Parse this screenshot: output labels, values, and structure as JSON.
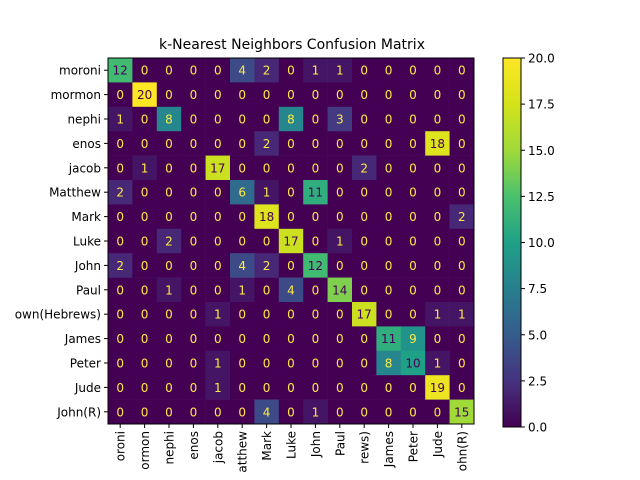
{
  "chart_data": {
    "type": "heatmap",
    "title": "k-Nearest Neighbors Confusion Matrix",
    "row_labels": [
      "moroni",
      "mormon",
      "nephi",
      "enos",
      "jacob",
      "Matthew",
      "Mark",
      "Luke",
      "John",
      "Paul",
      "Unknown(Hebrews)",
      "James",
      "Peter",
      "Jude",
      "John(R)"
    ],
    "col_labels": [
      "moroni",
      "mormon",
      "nephi",
      "enos",
      "jacob",
      "Matthew",
      "Mark",
      "Luke",
      "John",
      "Paul",
      "Unknown(Hebrews)",
      "James",
      "Peter",
      "Jude",
      "John(R)"
    ],
    "row_tick_labels": [
      "moroni",
      "mormon",
      "nephi",
      "enos",
      "jacob",
      "Matthew",
      "Mark",
      "Luke",
      "John",
      "Paul",
      "own(Hebrews)",
      "James",
      "Peter",
      "Jude",
      "John(R)"
    ],
    "col_tick_labels": [
      "oroni",
      "ormon",
      "nephi",
      "enos",
      "jacob",
      "atthew",
      "Mark",
      "Luke",
      "John",
      "Paul",
      "rews)",
      "James",
      "Peter",
      "Jude",
      "ohn(R)"
    ],
    "matrix": [
      [
        12,
        0,
        0,
        0,
        0,
        4,
        2,
        0,
        1,
        1,
        0,
        0,
        0,
        0,
        0
      ],
      [
        0,
        20,
        0,
        0,
        0,
        0,
        0,
        0,
        0,
        0,
        0,
        0,
        0,
        0,
        0
      ],
      [
        1,
        0,
        8,
        0,
        0,
        0,
        0,
        8,
        0,
        3,
        0,
        0,
        0,
        0,
        0
      ],
      [
        0,
        0,
        0,
        0,
        0,
        0,
        2,
        0,
        0,
        0,
        0,
        0,
        0,
        18,
        0
      ],
      [
        0,
        1,
        0,
        0,
        17,
        0,
        0,
        0,
        0,
        0,
        2,
        0,
        0,
        0,
        0
      ],
      [
        2,
        0,
        0,
        0,
        0,
        6,
        1,
        0,
        11,
        0,
        0,
        0,
        0,
        0,
        0
      ],
      [
        0,
        0,
        0,
        0,
        0,
        0,
        18,
        0,
        0,
        0,
        0,
        0,
        0,
        0,
        2
      ],
      [
        0,
        0,
        2,
        0,
        0,
        0,
        0,
        17,
        0,
        1,
        0,
        0,
        0,
        0,
        0
      ],
      [
        2,
        0,
        0,
        0,
        0,
        4,
        2,
        0,
        12,
        0,
        0,
        0,
        0,
        0,
        0
      ],
      [
        0,
        0,
        1,
        0,
        0,
        1,
        0,
        4,
        0,
        14,
        0,
        0,
        0,
        0,
        0
      ],
      [
        0,
        0,
        0,
        0,
        1,
        0,
        0,
        0,
        0,
        0,
        17,
        0,
        0,
        1,
        1
      ],
      [
        0,
        0,
        0,
        0,
        0,
        0,
        0,
        0,
        0,
        0,
        0,
        11,
        9,
        0,
        0
      ],
      [
        0,
        0,
        0,
        0,
        1,
        0,
        0,
        0,
        0,
        0,
        0,
        8,
        10,
        1,
        0
      ],
      [
        0,
        0,
        0,
        0,
        1,
        0,
        0,
        0,
        0,
        0,
        0,
        0,
        0,
        19,
        0
      ],
      [
        0,
        0,
        0,
        0,
        0,
        0,
        4,
        0,
        1,
        0,
        0,
        0,
        0,
        0,
        15
      ]
    ],
    "vmin": 0,
    "vmax": 20,
    "colormap": "viridis",
    "colorbar_ticks": [
      "0.0",
      "2.5",
      "5.0",
      "7.5",
      "10.0",
      "12.5",
      "15.0",
      "17.5",
      "20.0"
    ],
    "colorbar_tick_values": [
      0,
      2.5,
      5,
      7.5,
      10,
      12.5,
      15,
      17.5,
      20
    ],
    "text_color_light": "#ffe945",
    "text_color_dark": "#440154",
    "grid": false
  }
}
